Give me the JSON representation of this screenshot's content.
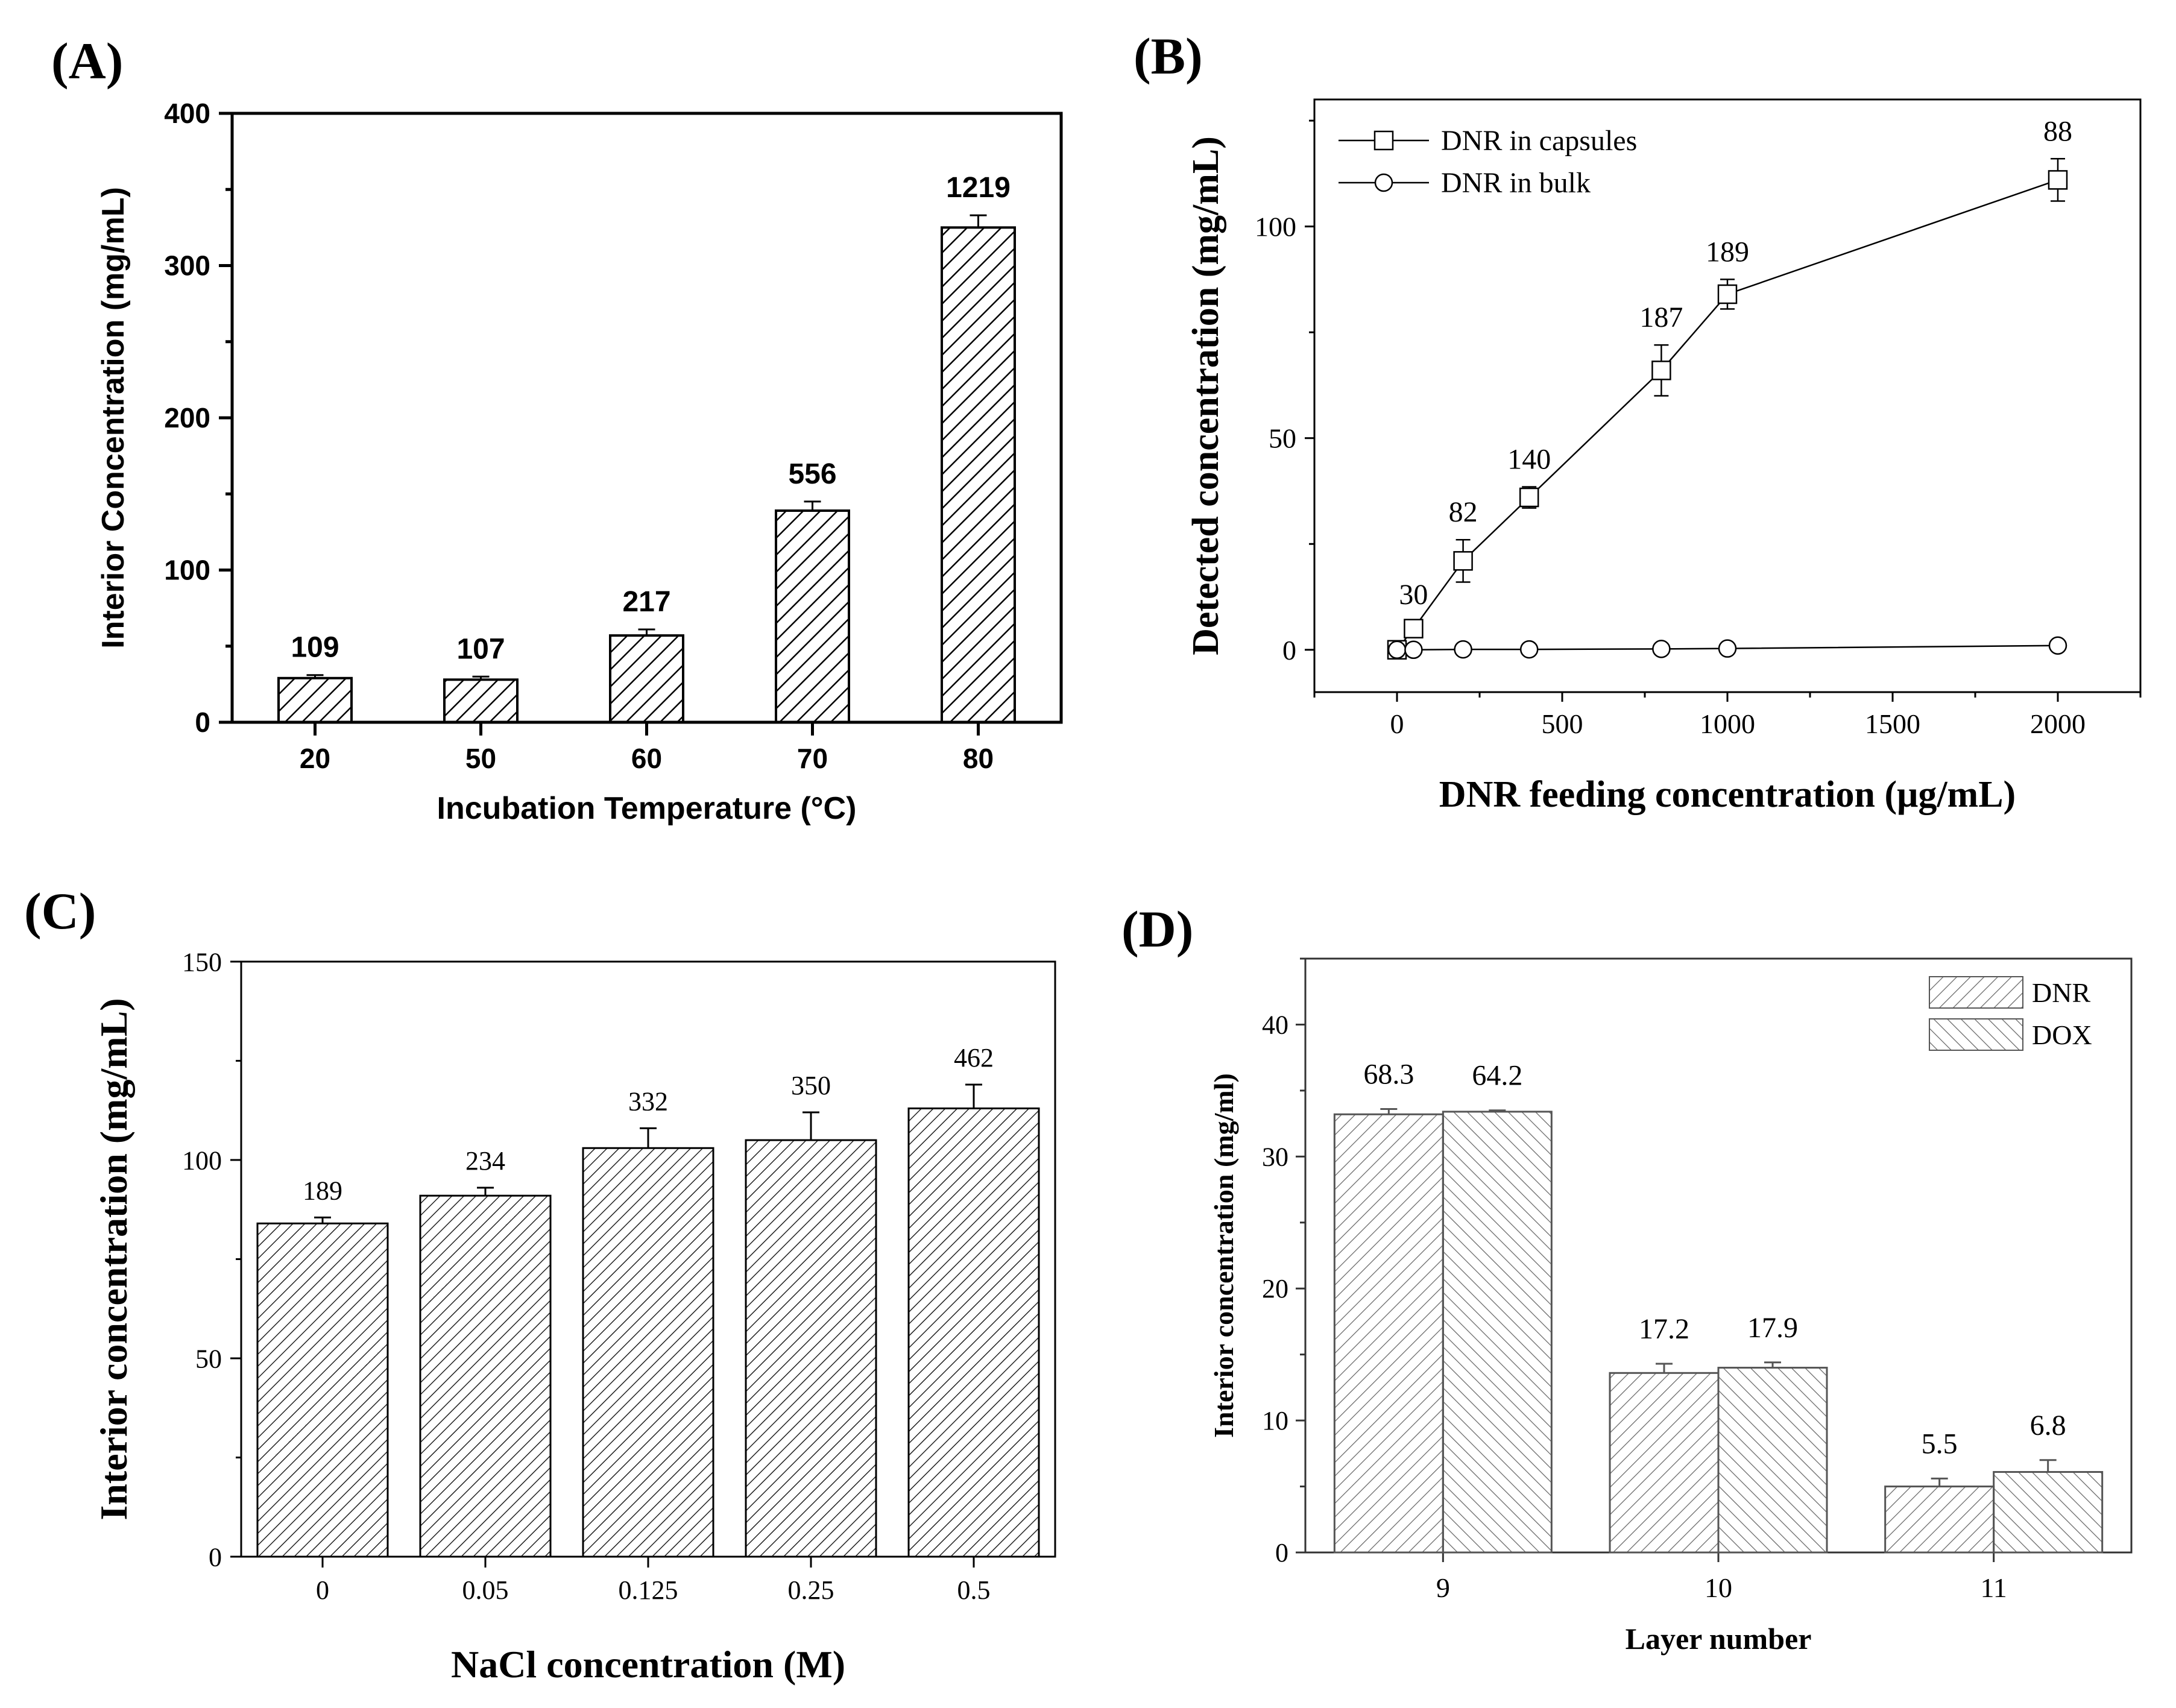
{
  "panel_letters": {
    "a": "(A)",
    "b": "(B)",
    "c": "(C)",
    "d": "(D)"
  },
  "colors": {
    "ink": "#000000",
    "bar_fill": "#ffffff",
    "panel_d_ink": "#555555"
  },
  "chart_data": [
    {
      "type": "bar",
      "panel": "A",
      "title": "",
      "xlabel": "Incubation Temperature (°C)",
      "ylabel": "Interior Concentration (mg/mL)",
      "categories": [
        "20",
        "50",
        "60",
        "70",
        "80"
      ],
      "values": [
        29,
        28,
        57,
        139,
        325
      ],
      "errors": [
        2,
        2,
        4,
        6,
        8
      ],
      "data_labels": [
        "109",
        "107",
        "217",
        "556",
        "1219"
      ],
      "ylim": [
        0,
        400
      ],
      "yticks": [
        "0",
        "100",
        "200",
        "300",
        "400"
      ],
      "bar_pattern": "diagonal-hatch",
      "grid": false
    },
    {
      "type": "line",
      "panel": "B",
      "title": "",
      "xlabel": "DNR feeding concentration (μg/mL)",
      "ylabel": "Detected concentration (mg/mL)",
      "xlim": [
        -250,
        2250
      ],
      "ylim": [
        -10,
        130
      ],
      "xticks": [
        "0",
        "500",
        "1000",
        "1500",
        "2000"
      ],
      "yticks": [
        "0",
        "50",
        "100"
      ],
      "legend": "top-left",
      "series": [
        {
          "name": "DNR in capsules",
          "marker": "square",
          "x": [
            0,
            50,
            200,
            400,
            800,
            1000,
            2000
          ],
          "y": [
            0,
            5,
            21,
            36,
            66,
            84,
            111
          ],
          "errors": [
            0,
            1.5,
            5,
            2.5,
            6,
            3.5,
            5
          ],
          "point_labels": [
            "",
            "30",
            "82",
            "140",
            "187",
            "189",
            "88"
          ]
        },
        {
          "name": "DNR in bulk",
          "marker": "circle",
          "x": [
            0,
            50,
            200,
            400,
            800,
            1000,
            2000
          ],
          "y": [
            0,
            0,
            0.1,
            0.1,
            0.2,
            0.3,
            1
          ],
          "errors": [
            0,
            0,
            0,
            0,
            0,
            0,
            0
          ]
        }
      ],
      "grid": false
    },
    {
      "type": "bar",
      "panel": "C",
      "title": "",
      "xlabel": "NaCl concentration (M)",
      "ylabel": "Interior concentration (mg/mL)",
      "categories": [
        "0",
        "0.05",
        "0.125",
        "0.25",
        "0.5"
      ],
      "values": [
        84,
        91,
        103,
        105,
        113
      ],
      "errors": [
        1.5,
        2,
        5,
        7,
        6
      ],
      "data_labels": [
        "189",
        "234",
        "332",
        "350",
        "462"
      ],
      "ylim": [
        0,
        150
      ],
      "yticks": [
        "0",
        "50",
        "100",
        "150"
      ],
      "bar_pattern": "diagonal-hatch",
      "grid": false
    },
    {
      "type": "bar",
      "panel": "D",
      "title": "",
      "xlabel": "Layer number",
      "ylabel": "Interior concentration (mg/ml)",
      "categories": [
        "9",
        "10",
        "11"
      ],
      "ylim": [
        0,
        45
      ],
      "yticks": [
        "0",
        "10",
        "20",
        "30",
        "40"
      ],
      "legend": "top-right",
      "series": [
        {
          "name": "DNR",
          "pattern": "forward-hatch",
          "values": [
            33.2,
            13.6,
            5.0
          ],
          "errors": [
            0.4,
            0.7,
            0.6
          ],
          "data_labels": [
            "68.3",
            "17.2",
            "5.5"
          ]
        },
        {
          "name": "DOX",
          "pattern": "back-hatch",
          "values": [
            33.4,
            14.0,
            6.1
          ],
          "errors": [
            0.1,
            0.4,
            0.9
          ],
          "data_labels": [
            "64.2",
            "17.9",
            "6.8"
          ]
        }
      ],
      "grid": false
    }
  ]
}
